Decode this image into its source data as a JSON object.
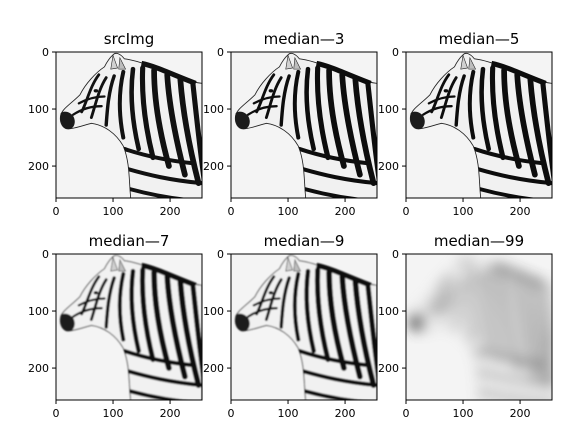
{
  "figure": {
    "background": "#ffffff",
    "image_background": "#f4f4f4",
    "subject": "zebra head and neck",
    "panels": [
      {
        "title": "srcImg",
        "blur": "none"
      },
      {
        "title": "median—3",
        "blur": "light"
      },
      {
        "title": "median—5",
        "blur": "light"
      },
      {
        "title": "median—7",
        "blur": "moderate"
      },
      {
        "title": "median—9",
        "blur": "moderate"
      },
      {
        "title": "median—99",
        "blur": "heavy"
      }
    ],
    "x_ticks": [
      "0",
      "100",
      "200"
    ],
    "y_ticks": [
      "0",
      "100",
      "200"
    ]
  }
}
